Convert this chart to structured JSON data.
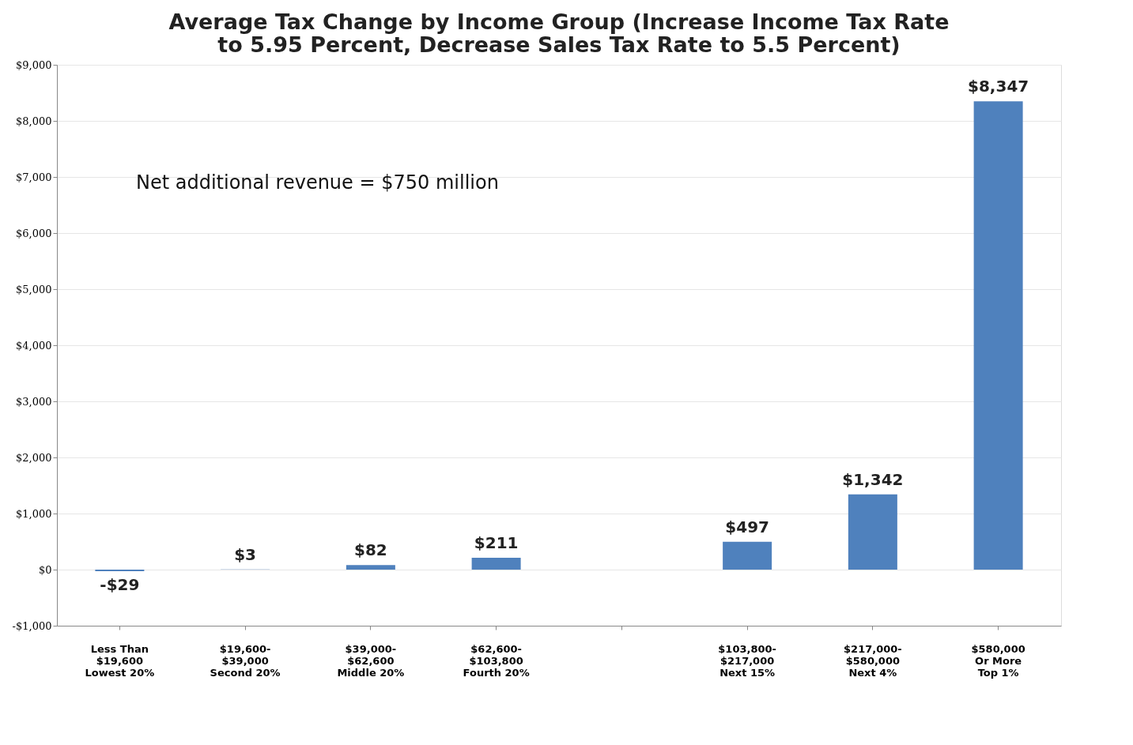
{
  "chart_data": {
    "type": "bar",
    "title": "Average Tax Change by Income Group (Increase Income Tax Rate to 5.95 Percent, Decrease Sales Tax Rate to 5.5 Percent)",
    "categories": [
      "Less Than\n$19,600\nLowest 20%",
      "$19,600-\n$39,000\nSecond 20%",
      "$39,000-\n$62,600\nMiddle 20%",
      "$62,600-\n$103,800\nFourth 20%",
      null,
      "$103,800-\n$217,000\nNext 15%",
      "$217,000-\n$580,000\nNext 4%",
      "$580,000\nOr More\nTop 1%"
    ],
    "values": [
      -29,
      3,
      82,
      211,
      null,
      497,
      1342,
      8347
    ],
    "value_labels": [
      "-$29",
      "$3",
      "$82",
      "$211",
      null,
      "$497",
      "$1,342",
      "$8,347"
    ],
    "color": "#4f81bd",
    "ylim": [
      -1000,
      9000
    ],
    "yticks": [
      {
        "value": -1000,
        "label": "-$1,000"
      },
      {
        "value": 0,
        "label": "$0"
      },
      {
        "value": 1000,
        "label": "$1,000"
      },
      {
        "value": 2000,
        "label": "$2,000"
      },
      {
        "value": 3000,
        "label": "$3,000"
      },
      {
        "value": 4000,
        "label": "$4,000"
      },
      {
        "value": 5000,
        "label": "$5,000"
      },
      {
        "value": 6000,
        "label": "$6,000"
      },
      {
        "value": 7000,
        "label": "$7,000"
      },
      {
        "value": 8000,
        "label": "$8,000"
      },
      {
        "value": 9000,
        "label": "$9,000"
      }
    ],
    "grid": "y",
    "annotations": [
      "Net additional revenue = $750 million"
    ]
  }
}
